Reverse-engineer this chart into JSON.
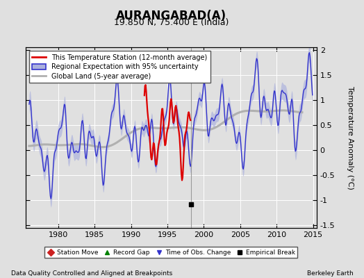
{
  "title": "AURANGABAD(A)",
  "subtitle": "19.850 N, 75.400 E (India)",
  "xlabel_bottom": "Data Quality Controlled and Aligned at Breakpoints",
  "xlabel_right": "Berkeley Earth",
  "ylabel": "Temperature Anomaly (°C)",
  "xlim": [
    1975.5,
    2015.5
  ],
  "ylim": [
    -1.55,
    2.05
  ],
  "yticks": [
    -1.5,
    -1.0,
    -0.5,
    0.0,
    0.5,
    1.0,
    1.5,
    2.0
  ],
  "xticks": [
    1980,
    1985,
    1990,
    1995,
    2000,
    2005,
    2010,
    2015
  ],
  "bg_color": "#e0e0e0",
  "plot_bg_color": "#e0e0e0",
  "grid_color": "#ffffff",
  "vertical_line_x": 1998.2,
  "empirical_break_x": 1998.2,
  "empirical_break_y": -1.08,
  "regional_color": "#3333cc",
  "regional_fill_color": "#aab0dd",
  "station_color": "#dd0000",
  "global_color": "#b0b0b0",
  "title_fontsize": 12,
  "subtitle_fontsize": 9,
  "tick_fontsize": 8,
  "ylabel_fontsize": 8
}
